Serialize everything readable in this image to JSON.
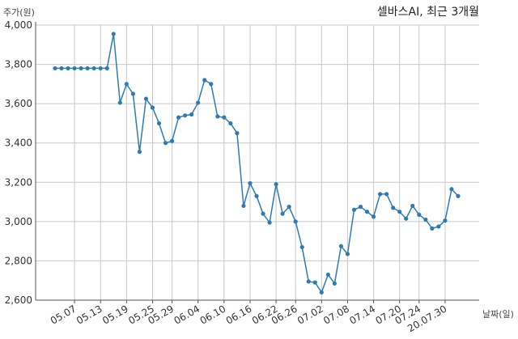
{
  "chart_data": {
    "type": "line",
    "title": "셀바스AI, 최근 3개월",
    "ylabel": "주가(원)",
    "xlabel": "날짜(일)",
    "ylim": [
      2600,
      4000
    ],
    "yticks": [
      2600,
      2800,
      3000,
      3200,
      3400,
      3600,
      3800,
      4000
    ],
    "y_tick_labels": [
      "2,600",
      "2,800",
      "3,000",
      "3,200",
      "3,400",
      "3,600",
      "3,800",
      "4,000"
    ],
    "x_tick_labels": [
      "05.07",
      "05.13",
      "05.19",
      "05.25",
      "05.29",
      "06.04",
      "06.10",
      "06.16",
      "06.22",
      "06.26",
      "07.02",
      "07.08",
      "07.14",
      "07.20",
      "07.24",
      "20.07.30"
    ],
    "x_tick_index": [
      3,
      7,
      11,
      15,
      18,
      22,
      26,
      30,
      34,
      37,
      41,
      45,
      49,
      53,
      56,
      60
    ],
    "grid": true,
    "color": "#2e7bb4",
    "series": [
      {
        "values": [
          3780,
          3780,
          3780,
          3780,
          3780,
          3780,
          3780,
          3780,
          3780,
          3955,
          3605,
          3700,
          3650,
          3355,
          3625,
          3580,
          3500,
          3400,
          3410,
          3530,
          3540,
          3545,
          3605,
          3720,
          3700,
          3535,
          3530,
          3500,
          3450,
          3080,
          3195,
          3130,
          3040,
          2995,
          3190,
          3040,
          3075,
          3000,
          2870,
          2695,
          2690,
          2640,
          2730,
          2685,
          2875,
          2835,
          3060,
          3075,
          3050,
          3025,
          3140,
          3140,
          3070,
          3050,
          3015,
          3080,
          3035,
          3010,
          2965,
          2975,
          3005,
          3165,
          3130
        ]
      }
    ]
  }
}
